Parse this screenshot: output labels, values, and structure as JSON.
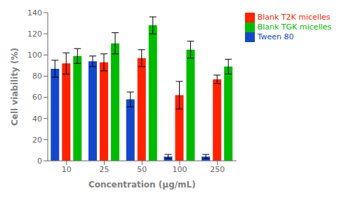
{
  "chart_data": {
    "type": "bar",
    "categories": [
      "10",
      "25",
      "50",
      "100",
      "250"
    ],
    "series": [
      {
        "name": "Tween 80",
        "color": "#1448CC",
        "values": [
          87,
          94,
          58,
          4,
          4
        ],
        "errors": [
          8,
          5,
          7,
          2,
          2
        ]
      },
      {
        "name": "Blank T2K micelles",
        "color": "#FF2200",
        "values": [
          92,
          93,
          97,
          62,
          77
        ],
        "errors": [
          10,
          8,
          8,
          13,
          4
        ]
      },
      {
        "name": "Blank TGK micelles",
        "color": "#00BB00",
        "values": [
          99,
          111,
          128,
          105,
          89
        ],
        "errors": [
          7,
          10,
          8,
          8,
          7
        ]
      }
    ],
    "xlabel": "Concentration (μg/mL)",
    "ylabel": "Cell viability (%)",
    "ylim": [
      0,
      140
    ],
    "yticks": [
      0,
      20,
      40,
      60,
      80,
      100,
      120,
      140
    ],
    "grid": false,
    "legend": "right"
  }
}
